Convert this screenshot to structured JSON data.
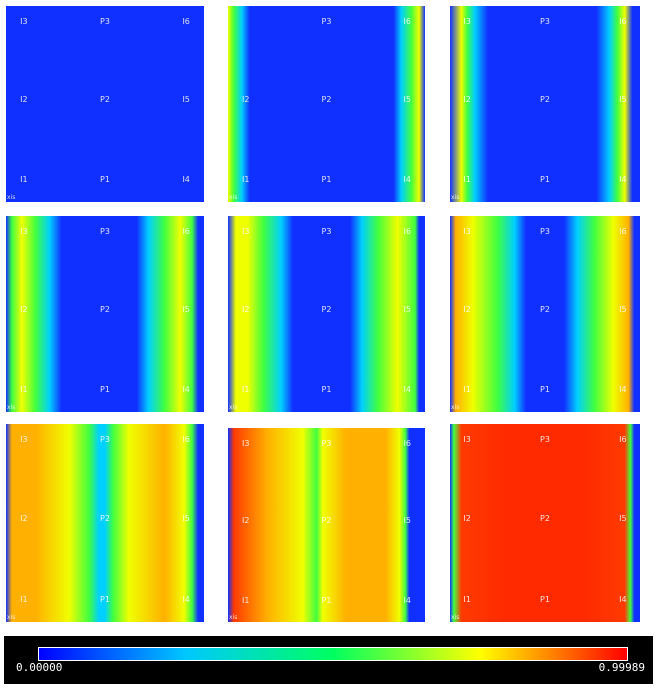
{
  "panels": [
    {
      "labels": {
        "top": [
          "I3",
          "P3",
          "I6"
        ],
        "mid": [
          "I2",
          "P2",
          "I5"
        ],
        "bot": [
          "I1",
          "P1",
          "I4"
        ]
      }
    },
    {
      "labels": {
        "top": [
          "",
          "P3",
          "I6"
        ],
        "mid": [
          "I2",
          "P2",
          "I5"
        ],
        "bot": [
          "I1",
          "P1",
          "I4"
        ]
      }
    },
    {
      "labels": {
        "top": [
          "I3",
          "P3",
          "I6"
        ],
        "mid": [
          "I2",
          "P2",
          "I5"
        ],
        "bot": [
          "I1",
          "P1",
          "I4"
        ]
      }
    },
    {
      "labels": {
        "top": [
          "I3",
          "P3",
          "I6"
        ],
        "mid": [
          "I2",
          "P2",
          "I5"
        ],
        "bot": [
          "I1",
          "P1",
          "I4"
        ]
      }
    },
    {
      "labels": {
        "top": [
          "I3",
          "P3",
          "I6"
        ],
        "mid": [
          "I2",
          "P2",
          "I5"
        ],
        "bot": [
          "I1",
          "P1",
          "I4"
        ]
      }
    },
    {
      "labels": {
        "top": [
          "I3",
          "P3",
          "I6"
        ],
        "mid": [
          "I2",
          "P2",
          "I5"
        ],
        "bot": [
          "I1",
          "P1",
          "I4"
        ]
      }
    },
    {
      "labels": {
        "top": [
          "I3",
          "P3",
          "I6"
        ],
        "mid": [
          "I2",
          "P2",
          "I5"
        ],
        "bot": [
          "I1",
          "P1",
          "I4"
        ]
      }
    },
    {
      "labels": {
        "top": [
          "I3",
          "P3",
          "I6"
        ],
        "mid": [
          "I2",
          "P2",
          "I5"
        ],
        "bot": [
          "I1",
          "P1",
          "I4"
        ]
      }
    },
    {
      "labels": {
        "top": [
          "I3",
          "P3",
          "I6"
        ],
        "mid": [
          "I2",
          "P2",
          "I5"
        ],
        "bot": [
          "I1",
          "P1",
          "I4"
        ]
      }
    }
  ],
  "panel_corner_text": "xis",
  "colorbar": {
    "min": "0.00000",
    "max": "0.99989",
    "colors": [
      "#0000ff",
      "#00c8ff",
      "#00ff60",
      "#ffff00",
      "#ff0000"
    ]
  },
  "colors": {
    "background_field": "#1030ff",
    "legend_background": "#000000"
  }
}
